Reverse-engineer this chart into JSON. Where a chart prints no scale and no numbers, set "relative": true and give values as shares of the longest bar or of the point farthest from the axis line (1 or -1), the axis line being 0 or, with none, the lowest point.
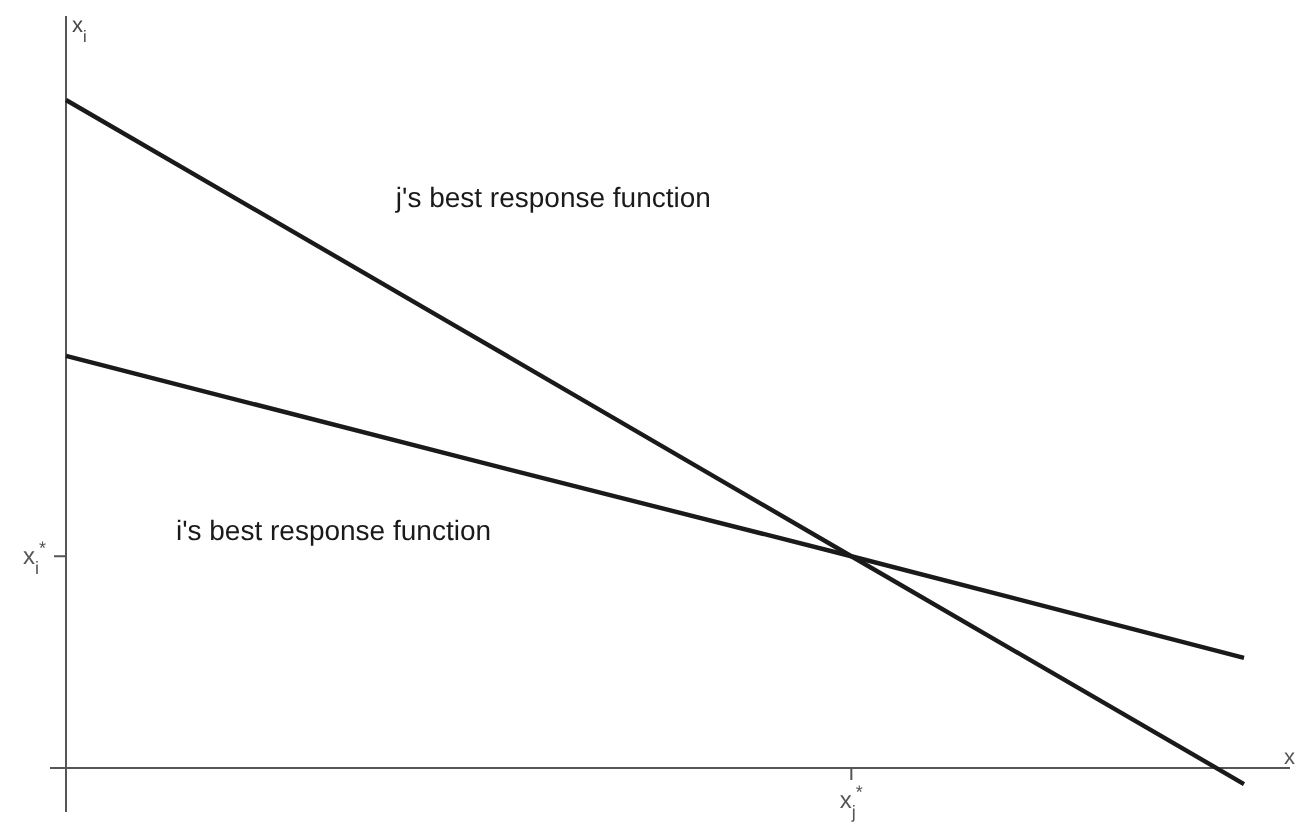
{
  "chart_data": {
    "type": "line",
    "relative": true,
    "xlabel": "x",
    "ylabel": "x$_{i}$",
    "categories": [
      null,
      null,
      null,
      null
    ],
    "series": [
      {
        "name": "j's best response function",
        "color": "#1a1a1a",
        "values": [
          1,
          0.659,
          0.317,
          -0.024
        ]
      },
      {
        "name": "i's best response function",
        "color": "#1a1a1a",
        "values": [
          0.617,
          0.466,
          0.317,
          0.165
        ]
      }
    ],
    "annotations": [
      "x$_{j}$$^{*}$",
      "x$_{i}$$^{*}$"
    ]
  }
}
